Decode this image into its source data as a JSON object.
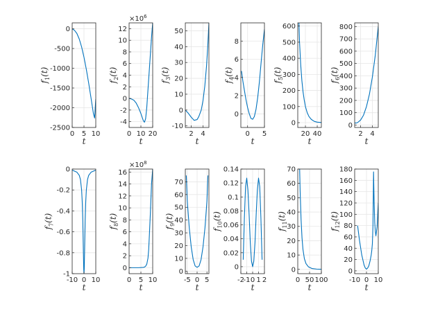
{
  "figure": {
    "background": "#ffffff",
    "line_color": "#0072BD",
    "grid_color": "#e6e6e6",
    "axis_color": "#262626"
  },
  "chart_data": [
    {
      "type": "line",
      "ylabel": "f_1(t)",
      "xlabel": "t",
      "xlim": [
        0,
        10
      ],
      "ylim": [
        -2500,
        150
      ],
      "xticks": [
        0,
        5,
        10
      ],
      "yticks": [
        -2500,
        -2000,
        -1500,
        -1000,
        -500,
        0
      ],
      "x": [
        0,
        1,
        2,
        3,
        4,
        5,
        6,
        7,
        8,
        9,
        9.5,
        10
      ],
      "y": [
        0,
        -40,
        -120,
        -260,
        -460,
        -720,
        -1030,
        -1380,
        -1760,
        -2150,
        -2260,
        -1780
      ]
    },
    {
      "type": "line",
      "ylabel": "f_2(t)",
      "xlabel": "t",
      "exponent": "×10^6",
      "xlim": [
        0,
        20
      ],
      "ylim": [
        -5,
        13
      ],
      "xticks": [
        0,
        10,
        20
      ],
      "yticks": [
        -4,
        -2,
        0,
        2,
        4,
        6,
        8,
        10,
        12
      ],
      "x": [
        0,
        2,
        4,
        6,
        8,
        10,
        12,
        13,
        14,
        15,
        16,
        17,
        18,
        19,
        20
      ],
      "y": [
        0,
        -0.1,
        -0.3,
        -0.8,
        -1.6,
        -2.6,
        -3.8,
        -4.1,
        -3.5,
        -1.5,
        1.5,
        4.5,
        7.5,
        10.5,
        13
      ]
    },
    {
      "type": "line",
      "ylabel": "f_3(t)",
      "xlabel": "t",
      "xlim": [
        1,
        5
      ],
      "ylim": [
        -11,
        55
      ],
      "xticks": [
        2,
        4
      ],
      "yticks": [
        -10,
        0,
        10,
        20,
        30,
        40,
        50
      ],
      "x": [
        1,
        1.5,
        2,
        2.5,
        3,
        3.3,
        3.7,
        4,
        4.3,
        4.6,
        4.8,
        5
      ],
      "y": [
        0,
        -2,
        -4.5,
        -6.5,
        -6,
        -4,
        0,
        6,
        15,
        28,
        40,
        55
      ]
    },
    {
      "type": "line",
      "ylabel": "f_4(t)",
      "xlabel": "t",
      "xlim": [
        -2,
        5
      ],
      "ylim": [
        -1.5,
        10
      ],
      "xticks": [
        0,
        5
      ],
      "yticks": [
        0,
        2,
        4,
        6,
        8
      ],
      "x": [
        -1.8,
        -1.4,
        -1,
        -0.5,
        0,
        0.5,
        1,
        1.5,
        2,
        2.5,
        3,
        3.5,
        4,
        4.5,
        5
      ],
      "y": [
        4.7,
        3.6,
        2.7,
        1.6,
        0.7,
        0.0,
        -0.5,
        -0.6,
        -0.3,
        0.5,
        1.8,
        3.5,
        5.6,
        7.6,
        9.3
      ]
    },
    {
      "type": "line",
      "ylabel": "f_5(t)",
      "xlabel": "t",
      "xlim": [
        7,
        47
      ],
      "ylim": [
        -30,
        620
      ],
      "xticks": [
        20,
        40
      ],
      "yticks": [
        0,
        100,
        200,
        300,
        400,
        500,
        600
      ],
      "x": [
        9,
        10,
        12,
        14,
        16,
        18,
        20,
        23,
        26,
        30,
        35,
        40,
        47
      ],
      "y": [
        620,
        500,
        360,
        260,
        190,
        140,
        100,
        62,
        38,
        20,
        8,
        3,
        1
      ]
    },
    {
      "type": "line",
      "ylabel": "f_6(t)",
      "xlabel": "t",
      "xlim": [
        1,
        5
      ],
      "ylim": [
        -20,
        830
      ],
      "xticks": [
        2,
        4
      ],
      "yticks": [
        0,
        100,
        200,
        300,
        400,
        500,
        600,
        700,
        800
      ],
      "x": [
        1,
        1.25,
        1.5,
        2,
        2.5,
        3,
        3.5,
        4,
        4.5,
        5
      ],
      "y": [
        17,
        16,
        20,
        40,
        80,
        150,
        250,
        390,
        570,
        800
      ]
    },
    {
      "type": "line",
      "ylabel": "f_7(t)",
      "xlabel": "t",
      "xlim": [
        -10,
        10
      ],
      "ylim": [
        -1,
        0
      ],
      "xticks": [
        -10,
        0,
        10
      ],
      "yticks": [
        -1,
        -0.8,
        -0.6,
        -0.4,
        -0.2,
        0
      ],
      "x": [
        -10,
        -6,
        -4,
        -3,
        -2,
        -1.5,
        -1,
        -0.5,
        -0.2,
        0,
        0.2,
        0.5,
        1,
        1.5,
        2,
        3,
        4,
        6,
        10
      ],
      "y": [
        -0.01,
        -0.03,
        -0.06,
        -0.1,
        -0.2,
        -0.31,
        -0.5,
        -0.8,
        -0.96,
        -1,
        -0.96,
        -0.8,
        -0.5,
        -0.31,
        -0.2,
        -0.1,
        -0.06,
        -0.03,
        -0.01
      ]
    },
    {
      "type": "line",
      "ylabel": "f_8(t)",
      "xlabel": "t",
      "exponent": "×10^8",
      "xlim": [
        0,
        10
      ],
      "ylim": [
        -1,
        16.5
      ],
      "xticks": [
        0,
        5,
        10
      ],
      "yticks": [
        0,
        2,
        4,
        6,
        8,
        10,
        12,
        14,
        16
      ],
      "x": [
        0,
        2,
        4,
        6,
        6.5,
        7,
        7.5,
        8,
        8.3,
        8.6,
        9,
        9.5,
        10
      ],
      "y": [
        0,
        0,
        0,
        0.05,
        0.1,
        0.25,
        0.6,
        1.6,
        3,
        5.5,
        9,
        14,
        16.5
      ]
    },
    {
      "type": "line",
      "ylabel": "f_9(t)",
      "xlabel": "t",
      "xlim": [
        -6,
        6
      ],
      "ylim": [
        -2,
        80
      ],
      "xticks": [
        -5,
        0,
        5
      ],
      "yticks": [
        0,
        10,
        20,
        30,
        40,
        50,
        60,
        70
      ],
      "x": [
        -5.5,
        -5,
        -4,
        -3,
        -2,
        -1,
        0,
        1,
        2,
        3,
        4,
        5,
        5.5
      ],
      "y": [
        75,
        55,
        34,
        19,
        9,
        4,
        3,
        4,
        9,
        19,
        34,
        55,
        75
      ]
    },
    {
      "type": "line",
      "ylabel": "f_10(t)",
      "xlabel": "t",
      "xlim": [
        -2,
        2
      ],
      "ylim": [
        -0.01,
        0.14
      ],
      "xticks": [
        -2,
        -1,
        0,
        1,
        2
      ],
      "yticks": [
        0,
        0.02,
        0.04,
        0.06,
        0.08,
        0.1,
        0.12,
        0.14
      ],
      "x": [
        -1.6,
        -1.4,
        -1.2,
        -1.0,
        -0.8,
        -0.6,
        -0.4,
        -0.2,
        0,
        0.2,
        0.4,
        0.6,
        0.8,
        1.0,
        1.2,
        1.4,
        1.6
      ],
      "y": [
        0.01,
        0.07,
        0.115,
        0.127,
        0.11,
        0.075,
        0.035,
        0.008,
        0,
        0.008,
        0.035,
        0.075,
        0.11,
        0.127,
        0.115,
        0.07,
        0.01
      ]
    },
    {
      "type": "line",
      "ylabel": "f_11(t)",
      "xlabel": "t",
      "xlim": [
        0,
        100
      ],
      "ylim": [
        -3,
        70
      ],
      "xticks": [
        0,
        50,
        100
      ],
      "yticks": [
        0,
        10,
        20,
        30,
        40,
        50,
        60,
        70
      ],
      "x": [
        8,
        10,
        14,
        18,
        22,
        28,
        35,
        45,
        60,
        80,
        100
      ],
      "y": [
        70,
        55,
        35,
        22,
        14,
        7.5,
        4,
        1.8,
        0.6,
        0.2,
        0.05
      ]
    },
    {
      "type": "line",
      "ylabel": "f_12(t)",
      "xlabel": "t",
      "xlim": [
        -10,
        10
      ],
      "ylim": [
        -5,
        180
      ],
      "xticks": [
        -10,
        0,
        10
      ],
      "yticks": [
        0,
        20,
        40,
        60,
        80,
        100,
        120,
        140,
        160,
        180
      ],
      "x": [
        -7.5,
        -6,
        -4,
        -2,
        -1,
        0,
        1,
        2,
        3,
        4,
        4.5,
        5,
        5.5,
        6,
        6.5,
        7,
        7.5,
        8,
        9,
        10
      ],
      "y": [
        80,
        55,
        28,
        10,
        5,
        3,
        5,
        9,
        17,
        28,
        36,
        48,
        80,
        175,
        120,
        85,
        70,
        62,
        78,
        120
      ]
    }
  ]
}
